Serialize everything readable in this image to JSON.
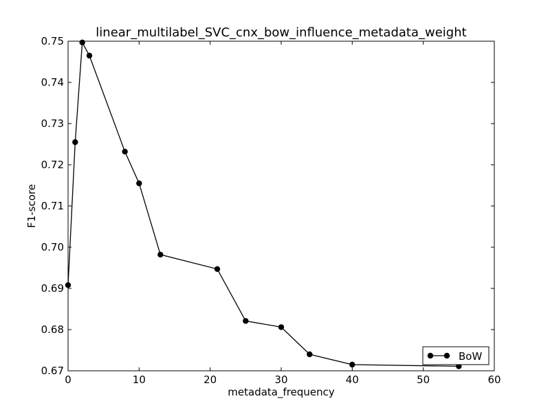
{
  "chart_data": {
    "type": "line",
    "title": "linear_multilabel_SVC_cnx_bow_influence_metadata_weight",
    "xlabel": "metadata_frequency",
    "ylabel": "F1-score",
    "xlim": [
      0,
      60
    ],
    "ylim": [
      0.67,
      0.75
    ],
    "x_ticks": [
      0,
      10,
      20,
      30,
      40,
      50,
      60
    ],
    "x_tick_labels": [
      "0",
      "10",
      "20",
      "30",
      "40",
      "50",
      "60"
    ],
    "y_ticks": [
      0.67,
      0.68,
      0.69,
      0.7,
      0.71,
      0.72,
      0.73,
      0.74,
      0.75
    ],
    "y_tick_labels": [
      "0.67",
      "0.68",
      "0.69",
      "0.70",
      "0.71",
      "0.72",
      "0.73",
      "0.74",
      "0.75"
    ],
    "grid": false,
    "legend_position": "lower-right",
    "series": [
      {
        "name": "BoW",
        "color": "#000000",
        "marker": "circle",
        "x": [
          0,
          1,
          2,
          3,
          8,
          10,
          13,
          21,
          25,
          30,
          34,
          40,
          55
        ],
        "y": [
          0.6908,
          0.7255,
          0.7497,
          0.7465,
          0.7232,
          0.7155,
          0.6982,
          0.6947,
          0.6821,
          0.6806,
          0.674,
          0.6715,
          0.6711
        ]
      }
    ]
  }
}
